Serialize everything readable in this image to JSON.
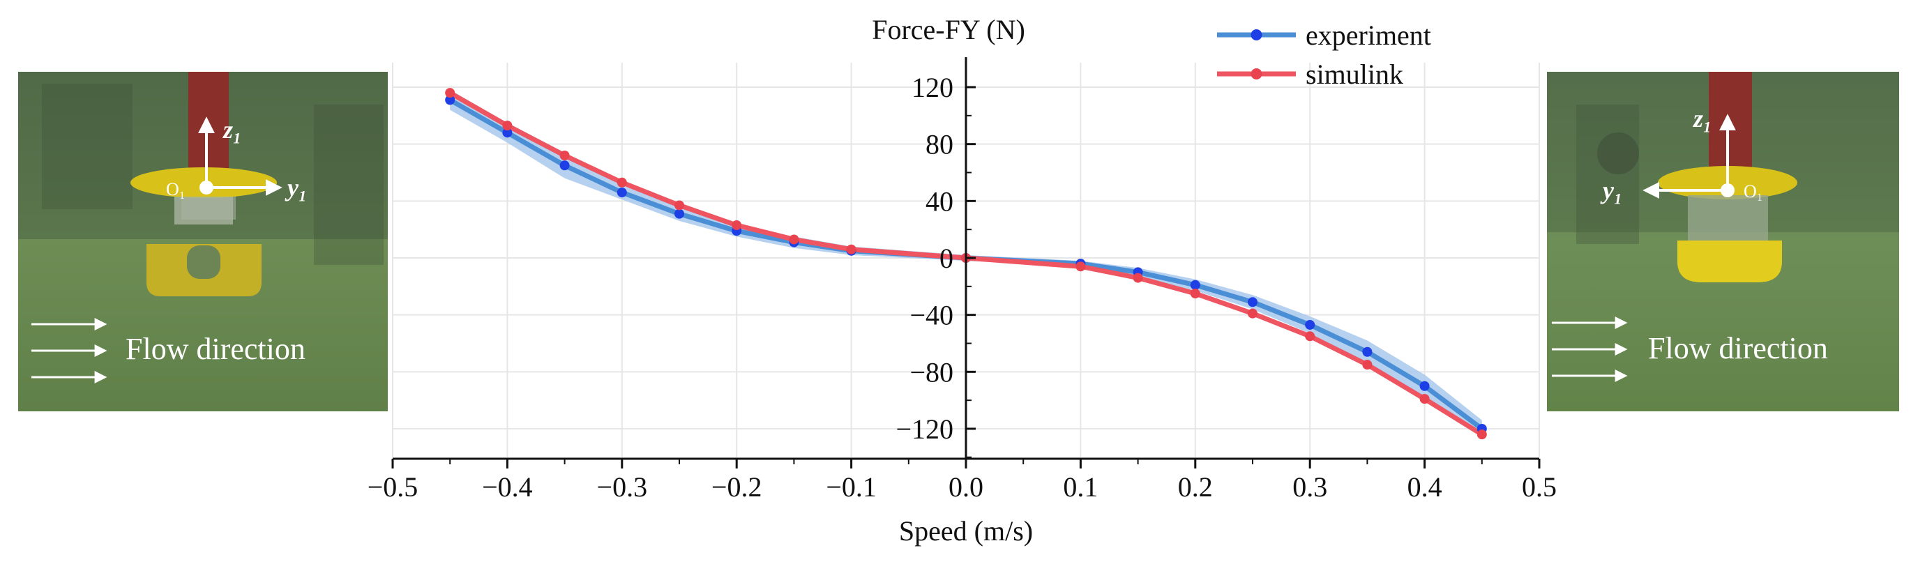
{
  "chart_data": {
    "type": "line",
    "title": "Force-FY (N)",
    "xlabel": "Speed (m/s)",
    "ylabel": "Force-FY (N)",
    "xlim": [
      -0.5,
      0.5
    ],
    "ylim": [
      -140,
      140
    ],
    "grid": true,
    "legend_position": "top-right",
    "x_ticks": [
      -0.5,
      -0.4,
      -0.3,
      -0.2,
      -0.1,
      0.0,
      0.1,
      0.2,
      0.3,
      0.4,
      0.5
    ],
    "x_tick_labels": [
      "−0.5",
      "−0.4",
      "−0.3",
      "−0.2",
      "−0.1",
      "0.0",
      "0.1",
      "0.2",
      "0.3",
      "0.4",
      "0.5"
    ],
    "y_ticks": [
      120,
      80,
      40,
      0,
      -40,
      -80,
      -120
    ],
    "y_tick_labels": [
      "120",
      "80",
      "40",
      "0",
      "−40",
      "−80",
      "−120"
    ],
    "series": [
      {
        "name": "experiment",
        "color": "#1f3fe6",
        "line_color": "#4a8fd6",
        "band_color": "#a9c8ec",
        "x": [
          -0.45,
          -0.4,
          -0.35,
          -0.3,
          -0.25,
          -0.2,
          -0.15,
          -0.1,
          0.0,
          0.1,
          0.15,
          0.2,
          0.25,
          0.3,
          0.35,
          0.4,
          0.45
        ],
        "values": [
          111,
          88,
          65,
          46,
          31,
          19,
          11,
          5,
          0,
          -4,
          -10,
          -19,
          -31,
          -47,
          -66,
          -90,
          -120
        ],
        "band": [
          7,
          7,
          9,
          5,
          5,
          4,
          4,
          3,
          2,
          2,
          3,
          4,
          5,
          6,
          8,
          8,
          6
        ]
      },
      {
        "name": "simulink",
        "color": "#e8434f",
        "line_color": "#ee5560",
        "x": [
          -0.45,
          -0.4,
          -0.35,
          -0.3,
          -0.25,
          -0.2,
          -0.15,
          -0.1,
          0.0,
          0.1,
          0.15,
          0.2,
          0.25,
          0.3,
          0.35,
          0.4,
          0.45
        ],
        "values": [
          116,
          93,
          72,
          53,
          37,
          23,
          13,
          6,
          0,
          -6,
          -14,
          -25,
          -39,
          -55,
          -75,
          -99,
          -124
        ]
      }
    ]
  },
  "photos": {
    "left": {
      "axis_z": "z₁",
      "axis_y": "y₁",
      "origin": "O₁",
      "flow_label": "Flow direction"
    },
    "right": {
      "axis_z": "z₁",
      "axis_y": "y₁",
      "origin": "O₁",
      "flow_label": "Flow direction"
    }
  }
}
